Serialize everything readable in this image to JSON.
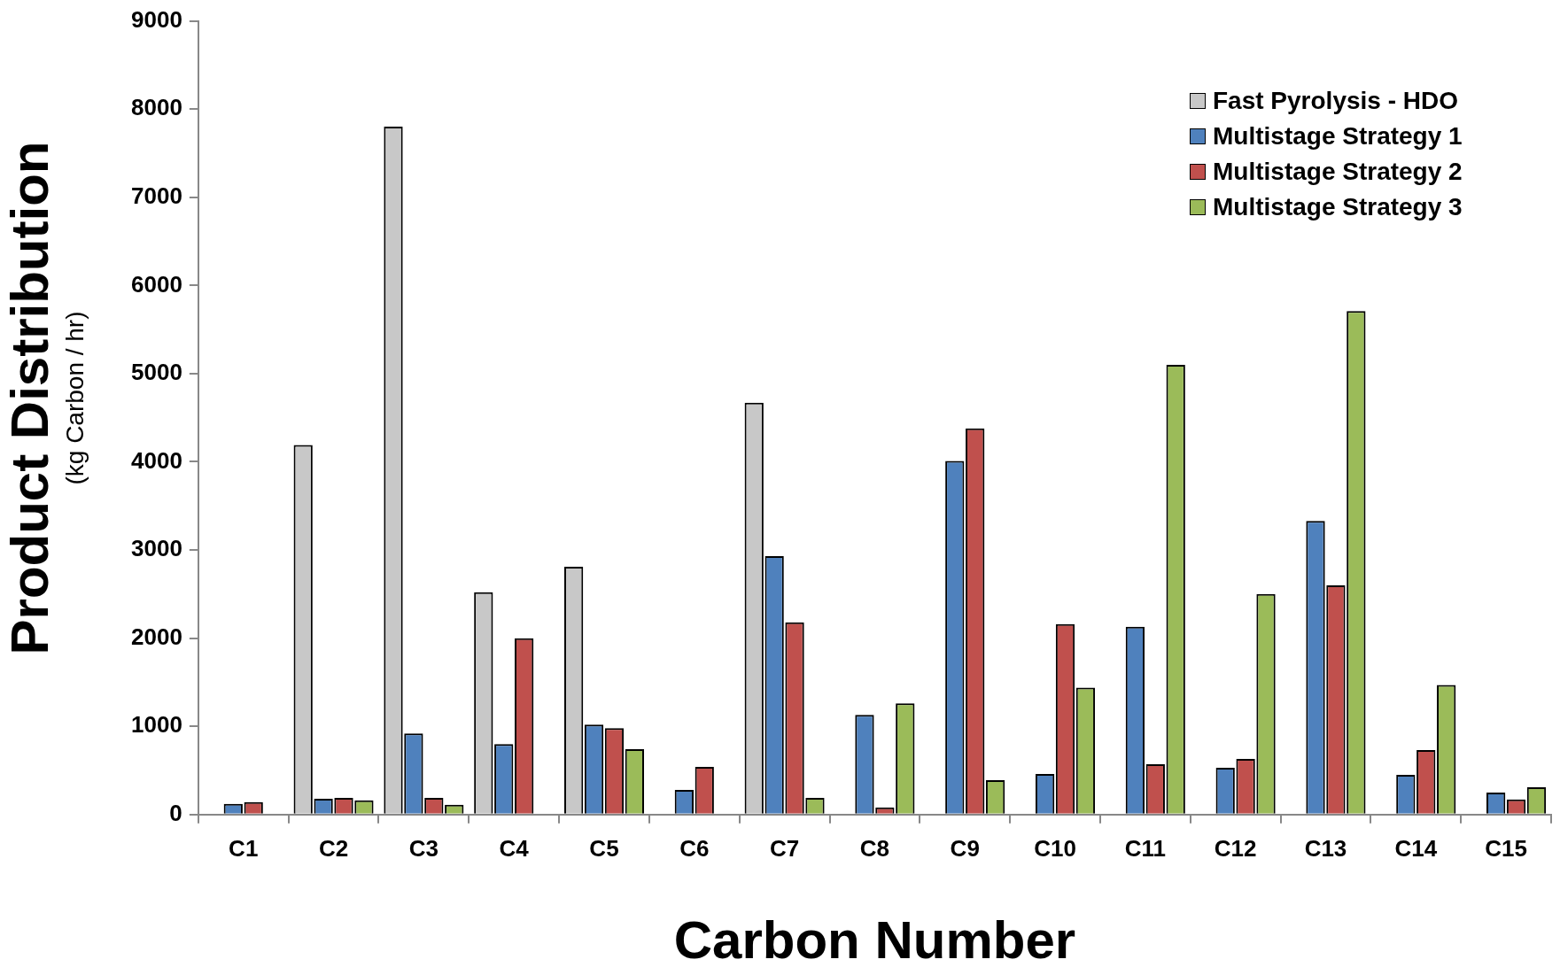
{
  "chart_data": {
    "type": "bar",
    "xlabel": "Carbon Number",
    "ylabel": "Product Distribution\n(kg Carbon / hr)",
    "categories": [
      "C1",
      "C2",
      "C3",
      "C4",
      "C5",
      "C6",
      "C7",
      "C8",
      "C9",
      "C10",
      "C11",
      "C12",
      "C13",
      "C14",
      "C15"
    ],
    "series": [
      {
        "name": "Fast Pyrolysis - HDO",
        "color": "#c8c8c8",
        "values": [
          null,
          4190,
          7800,
          2520,
          2810,
          null,
          4670,
          null,
          null,
          null,
          null,
          null,
          null,
          null,
          null
        ]
      },
      {
        "name": "Multistage Strategy 1",
        "color": "#4f81bd",
        "values": [
          120,
          180,
          920,
          800,
          1020,
          280,
          2930,
          1130,
          4010,
          460,
          2130,
          530,
          3330,
          450,
          250
        ]
      },
      {
        "name": "Multistage Strategy 2",
        "color": "#c0504d",
        "values": [
          140,
          190,
          190,
          2000,
          980,
          540,
          2180,
          80,
          4380,
          2160,
          570,
          630,
          2600,
          730,
          170
        ]
      },
      {
        "name": "Multistage Strategy 3",
        "color": "#9bbb59",
        "values": [
          0,
          160,
          110,
          0,
          740,
          0,
          190,
          1260,
          390,
          1440,
          5100,
          2500,
          5710,
          1470,
          310
        ]
      }
    ],
    "ylim": [
      0,
      9000
    ],
    "yticks": [
      0,
      1000,
      2000,
      3000,
      4000,
      5000,
      6000,
      7000,
      8000,
      9000
    ],
    "grid": false,
    "legend": "top right"
  }
}
